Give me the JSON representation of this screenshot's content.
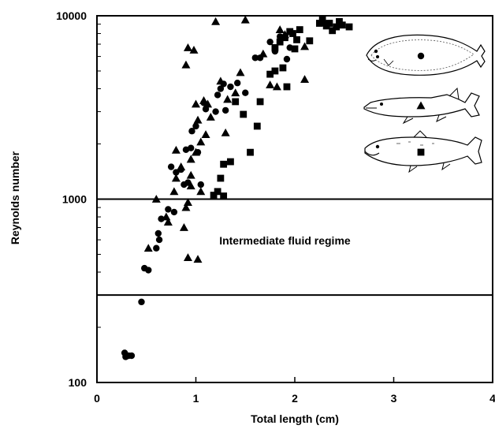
{
  "chart_data": {
    "type": "scatter",
    "title": "",
    "xlabel": "Total length (cm)",
    "ylabel": "Reynolds number",
    "xlim": [
      0,
      4
    ],
    "ylim": [
      100,
      10000
    ],
    "yscale": "log",
    "x_ticks": [
      "0",
      "1",
      "2",
      "3",
      "4"
    ],
    "y_ticks": [
      {
        "value": 100,
        "label": "100"
      },
      {
        "value": 1000,
        "label": "1000"
      },
      {
        "value": 10000,
        "label": "10000"
      }
    ],
    "grid": false,
    "reference_lines": [
      {
        "y": 1000
      },
      {
        "y": 300
      }
    ],
    "annotation": {
      "text": "Intermediate fluid regime",
      "x": 1.9,
      "y": 550
    },
    "legend": {
      "placement": "top-right",
      "entries": [
        {
          "icon": "flatfish-icon",
          "marker": "circle"
        },
        {
          "icon": "pike-icon",
          "marker": "triangle"
        },
        {
          "icon": "salmon-icon",
          "marker": "square"
        }
      ]
    },
    "series": [
      {
        "marker": "circle",
        "points": [
          [
            0.28,
            145
          ],
          [
            0.32,
            140
          ],
          [
            0.29,
            138
          ],
          [
            0.35,
            140
          ],
          [
            0.45,
            275
          ],
          [
            0.48,
            420
          ],
          [
            0.52,
            410
          ],
          [
            0.6,
            540
          ],
          [
            0.62,
            650
          ],
          [
            0.63,
            600
          ],
          [
            0.65,
            780
          ],
          [
            0.72,
            880
          ],
          [
            0.75,
            1500
          ],
          [
            0.78,
            850
          ],
          [
            0.8,
            1400
          ],
          [
            0.85,
            1450
          ],
          [
            0.88,
            1200
          ],
          [
            0.9,
            1860
          ],
          [
            0.92,
            1230
          ],
          [
            0.95,
            1900
          ],
          [
            0.96,
            2350
          ],
          [
            1.0,
            2500
          ],
          [
            1.02,
            1800
          ],
          [
            1.05,
            1200
          ],
          [
            1.08,
            3350
          ],
          [
            1.1,
            3100
          ],
          [
            1.2,
            3000
          ],
          [
            1.22,
            3700
          ],
          [
            1.25,
            4000
          ],
          [
            1.28,
            4250
          ],
          [
            1.3,
            3050
          ],
          [
            1.35,
            4100
          ],
          [
            1.42,
            4300
          ],
          [
            1.5,
            3800
          ],
          [
            1.6,
            5900
          ],
          [
            1.65,
            5900
          ],
          [
            1.75,
            7200
          ],
          [
            1.8,
            6400
          ],
          [
            1.85,
            7700
          ],
          [
            1.95,
            6700
          ],
          [
            1.92,
            5800
          ]
        ]
      },
      {
        "marker": "triangle",
        "points": [
          [
            0.52,
            540
          ],
          [
            0.6,
            1000
          ],
          [
            0.7,
            800
          ],
          [
            0.72,
            750
          ],
          [
            0.78,
            1100
          ],
          [
            0.8,
            1300
          ],
          [
            0.8,
            1850
          ],
          [
            0.85,
            1500
          ],
          [
            0.88,
            700
          ],
          [
            0.9,
            900
          ],
          [
            0.9,
            5400
          ],
          [
            0.92,
            6700
          ],
          [
            0.95,
            1180
          ],
          [
            0.95,
            1350
          ],
          [
            0.95,
            1650
          ],
          [
            0.98,
            6500
          ],
          [
            1.0,
            1800
          ],
          [
            1.0,
            3300
          ],
          [
            1.02,
            2700
          ],
          [
            1.05,
            1100
          ],
          [
            1.05,
            2050
          ],
          [
            1.08,
            3450
          ],
          [
            1.1,
            2250
          ],
          [
            1.12,
            3300
          ],
          [
            1.15,
            2800
          ],
          [
            1.2,
            9300
          ],
          [
            1.25,
            4400
          ],
          [
            1.3,
            2300
          ],
          [
            1.32,
            3500
          ],
          [
            1.4,
            3800
          ],
          [
            1.45,
            4900
          ],
          [
            1.5,
            9500
          ],
          [
            1.68,
            6200
          ],
          [
            1.75,
            4200
          ],
          [
            1.82,
            4100
          ],
          [
            1.85,
            8400
          ],
          [
            1.9,
            7900
          ],
          [
            2.1,
            6800
          ],
          [
            2.1,
            4500
          ],
          [
            2.3,
            9200
          ],
          [
            0.92,
            480
          ],
          [
            1.02,
            470
          ],
          [
            0.92,
            960
          ]
        ]
      },
      {
        "marker": "square",
        "points": [
          [
            1.18,
            1050
          ],
          [
            1.22,
            1100
          ],
          [
            1.25,
            1300
          ],
          [
            1.28,
            1040
          ],
          [
            1.28,
            1550
          ],
          [
            1.35,
            1600
          ],
          [
            1.4,
            3400
          ],
          [
            1.48,
            2900
          ],
          [
            1.55,
            1800
          ],
          [
            1.62,
            2500
          ],
          [
            1.65,
            3400
          ],
          [
            1.75,
            4800
          ],
          [
            1.8,
            5000
          ],
          [
            1.8,
            6700
          ],
          [
            1.85,
            7200
          ],
          [
            1.88,
            5200
          ],
          [
            1.9,
            7600
          ],
          [
            1.92,
            4100
          ],
          [
            1.95,
            8200
          ],
          [
            1.98,
            8000
          ],
          [
            2.0,
            6600
          ],
          [
            2.02,
            7400
          ],
          [
            2.05,
            8400
          ],
          [
            2.15,
            7300
          ],
          [
            2.25,
            9100
          ],
          [
            2.28,
            9500
          ],
          [
            2.32,
            8800
          ],
          [
            2.35,
            9100
          ],
          [
            2.38,
            8300
          ],
          [
            2.42,
            8700
          ],
          [
            2.45,
            9300
          ],
          [
            2.48,
            8900
          ],
          [
            2.55,
            8700
          ]
        ]
      }
    ]
  }
}
